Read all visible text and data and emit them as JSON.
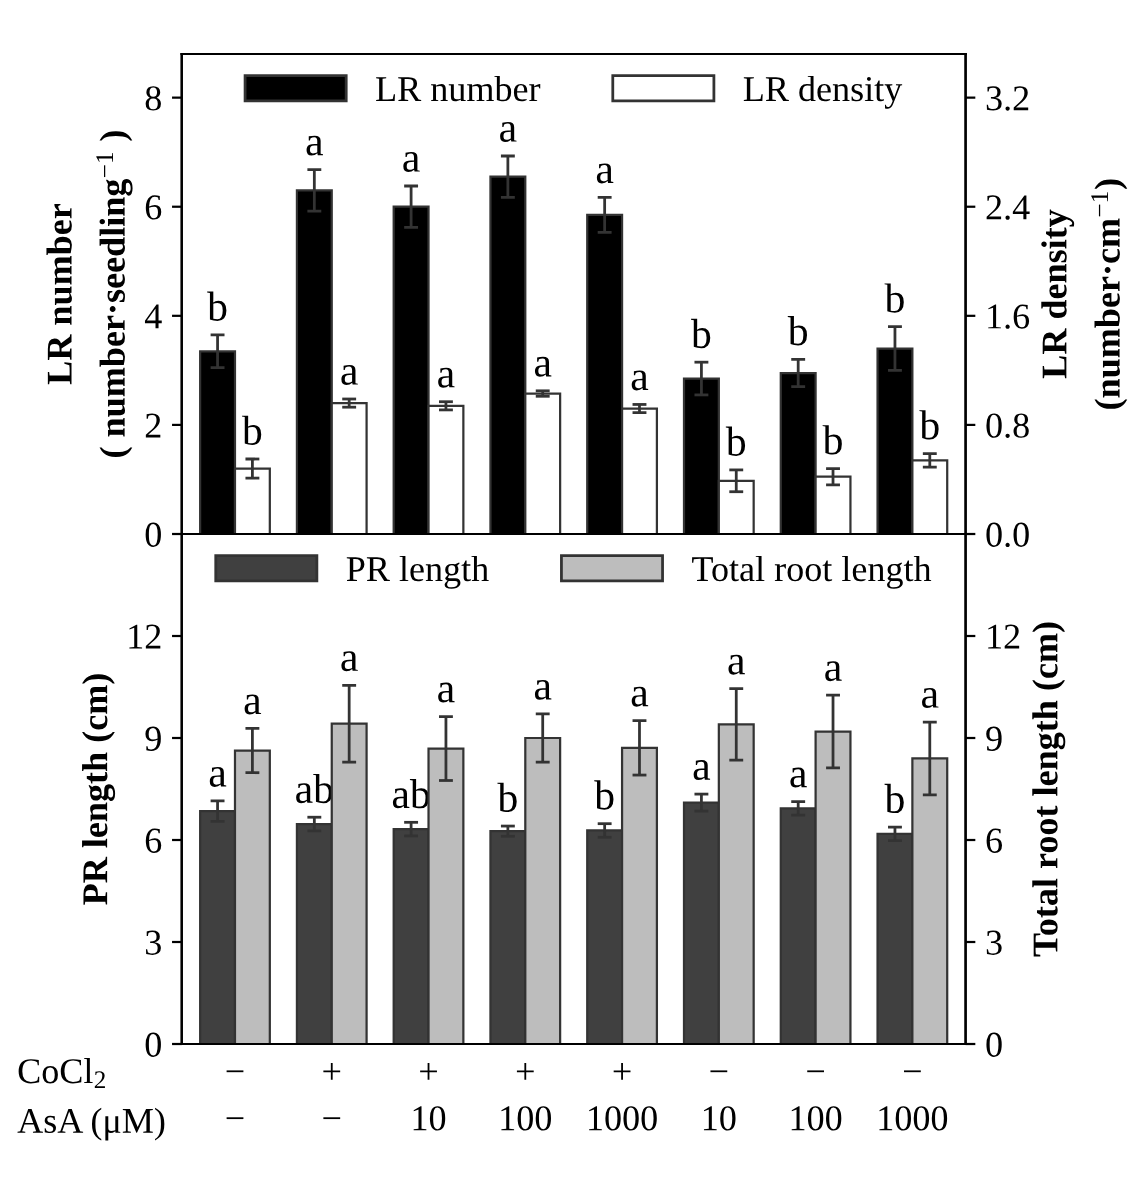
{
  "chart_data": [
    {
      "type": "bar",
      "categories": [
        null,
        null,
        null,
        null,
        null,
        null,
        null,
        null
      ],
      "tick_labels": "y",
      "legend": "top",
      "ylabel": "LR number\n( number·seedling$^{−1}$ )",
      "y2label": "LR density\n(number·cm$^{−1}$)",
      "ylim": [
        0,
        8.8
      ],
      "yticks": [
        0,
        2,
        4,
        6,
        8
      ],
      "y2lim": [
        0,
        3.52
      ],
      "y2ticks": [
        {
          "value": 0,
          "label": "0.0"
        },
        0.8,
        1.6,
        2.4,
        3.2
      ],
      "series": [
        {
          "name": "LR number",
          "color": "#000000",
          "values": [
            3.35,
            6.3,
            6.0,
            6.55,
            5.85,
            2.85,
            2.95,
            3.4
          ],
          "errors": [
            0.3,
            0.38,
            0.38,
            0.38,
            0.32,
            0.3,
            0.25,
            0.4
          ]
        },
        {
          "name": "LR density",
          "color": "#ffffff",
          "axis": "y2",
          "values": [
            0.48,
            0.96,
            0.94,
            1.03,
            0.92,
            0.39,
            0.42,
            0.54
          ],
          "errors": [
            0.07,
            0.03,
            0.03,
            0.02,
            0.03,
            0.08,
            0.06,
            0.05
          ]
        }
      ],
      "annotations": [
        "b",
        "a",
        "a",
        "a",
        "a",
        "b",
        "b",
        "b",
        "b",
        "a",
        "a",
        "a",
        "a",
        "b",
        "b",
        "b"
      ]
    },
    {
      "type": "bar",
      "categories": [
        "−",
        "−",
        "10",
        "100",
        "1000",
        "10",
        "100",
        "1000"
      ],
      "legend": "top",
      "ylabel": "PR length (cm)",
      "y2label": "Total root length (cm)",
      "ylim": [
        0,
        15
      ],
      "yticks": [
        0,
        3,
        6,
        9,
        12
      ],
      "y2lim": [
        0,
        15
      ],
      "y2ticks": [
        0,
        3,
        6,
        9,
        12
      ],
      "series": [
        {
          "name": "PR length",
          "color": "#404040",
          "values": [
            6.85,
            6.47,
            6.32,
            6.26,
            6.28,
            7.1,
            6.93,
            6.18
          ],
          "errors": [
            0.3,
            0.2,
            0.2,
            0.15,
            0.2,
            0.25,
            0.2,
            0.2
          ]
        },
        {
          "name": "Total root length",
          "color": "#bdbdbd",
          "axis": "y2",
          "values": [
            8.63,
            9.42,
            8.69,
            9.0,
            8.71,
            9.4,
            9.19,
            8.4
          ],
          "errors": [
            0.65,
            1.13,
            0.94,
            0.71,
            0.8,
            1.05,
            1.07,
            1.07
          ]
        }
      ],
      "annotations": [
        "a",
        "ab",
        "ab",
        "b",
        "b",
        "a",
        "a",
        "b",
        "a",
        "a",
        "a",
        "a",
        "a",
        "a",
        "a",
        "a",
        "CoCl$_{2}$",
        "−",
        "+",
        "+",
        "+",
        "+",
        "−",
        "−",
        "−",
        "AsA (μM)"
      ]
    }
  ]
}
